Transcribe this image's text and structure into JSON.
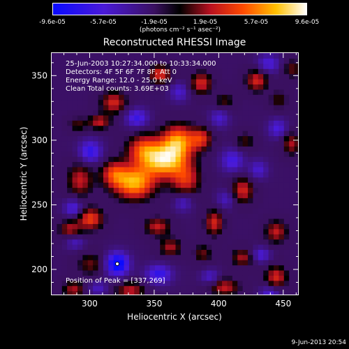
{
  "colorbar": {
    "ticks": [
      "-9.6e-05",
      "-5.7e-05",
      "-1.9e-05",
      "1.9e-05",
      "5.7e-05",
      "9.6e-05"
    ],
    "units": "(photons cm⁻² s⁻¹ asec⁻²)",
    "min": -9.6e-05,
    "max": 9.6e-05
  },
  "info": {
    "time_range": "25-Jun-2003 10:27:34.000 to 10:33:34.000",
    "detectors": "Detectors: 4F 5F 6F 7F 8F, Att 0",
    "energy": "Energy Range: 12.0 - 25.0 keV",
    "method": "Clean     Total counts: 3.69E+03",
    "peak": "Position of Peak = [337,269]"
  },
  "footer": {
    "date": "9-Jun-2013 20:54"
  },
  "chart_data": {
    "type": "heatmap",
    "title": "Reconstructed RHESSI Image",
    "xlabel": "Heliocentric X (arcsec)",
    "ylabel": "Heliocentric Y (arcsec)",
    "xlim": [
      270,
      462
    ],
    "ylim": [
      180,
      368
    ],
    "xticks": [
      300,
      350,
      400,
      450
    ],
    "yticks": [
      200,
      250,
      300,
      350
    ],
    "colormap": "rhessi-signed (blue-black-red-yellow-white)",
    "peak": [
      337,
      269
    ],
    "sources": [
      {
        "x": 357,
        "y": 285,
        "amp": 1.0,
        "sx": 12,
        "sy": 9
      },
      {
        "x": 334,
        "y": 268,
        "amp": 0.95,
        "sx": 11,
        "sy": 9
      },
      {
        "x": 368,
        "y": 300,
        "amp": 0.85,
        "sx": 9,
        "sy": 9
      },
      {
        "x": 341,
        "y": 294,
        "amp": 0.6,
        "sx": 9,
        "sy": 8
      },
      {
        "x": 318,
        "y": 275,
        "amp": 0.55,
        "sx": 7,
        "sy": 7
      },
      {
        "x": 374,
        "y": 270,
        "amp": 0.55,
        "sx": 8,
        "sy": 9
      },
      {
        "x": 386,
        "y": 302,
        "amp": 0.55,
        "sx": 6,
        "sy": 6
      },
      {
        "x": 292,
        "y": 270,
        "amp": 0.5,
        "sx": 7,
        "sy": 9
      },
      {
        "x": 300,
        "y": 240,
        "amp": 0.65,
        "sx": 7,
        "sy": 6
      },
      {
        "x": 284,
        "y": 232,
        "amp": 0.45,
        "sx": 6,
        "sy": 5
      },
      {
        "x": 352,
        "y": 234,
        "amp": 0.5,
        "sx": 7,
        "sy": 5
      },
      {
        "x": 362,
        "y": 218,
        "amp": 0.45,
        "sx": 6,
        "sy": 5
      },
      {
        "x": 396,
        "y": 237,
        "amp": 0.55,
        "sx": 5,
        "sy": 7
      },
      {
        "x": 418,
        "y": 262,
        "amp": 0.55,
        "sx": 6,
        "sy": 7
      },
      {
        "x": 420,
        "y": 300,
        "amp": 0.3,
        "sx": 5,
        "sy": 5
      },
      {
        "x": 456,
        "y": 298,
        "amp": 0.45,
        "sx": 5,
        "sy": 6
      },
      {
        "x": 444,
        "y": 230,
        "amp": 0.5,
        "sx": 6,
        "sy": 6
      },
      {
        "x": 444,
        "y": 195,
        "amp": 0.55,
        "sx": 6,
        "sy": 6
      },
      {
        "x": 418,
        "y": 210,
        "amp": 0.45,
        "sx": 6,
        "sy": 5
      },
      {
        "x": 387,
        "y": 213,
        "amp": 0.35,
        "sx": 5,
        "sy": 5
      },
      {
        "x": 404,
        "y": 187,
        "amp": 0.5,
        "sx": 8,
        "sy": 5
      },
      {
        "x": 331,
        "y": 184,
        "amp": 0.5,
        "sx": 8,
        "sy": 5
      },
      {
        "x": 300,
        "y": 205,
        "amp": 0.35,
        "sx": 7,
        "sy": 6
      },
      {
        "x": 287,
        "y": 185,
        "amp": 0.45,
        "sx": 6,
        "sy": 5
      },
      {
        "x": 307,
        "y": 315,
        "amp": 0.5,
        "sx": 6,
        "sy": 4
      },
      {
        "x": 318,
        "y": 330,
        "amp": 0.55,
        "sx": 7,
        "sy": 6
      },
      {
        "x": 290,
        "y": 313,
        "amp": 0.3,
        "sx": 5,
        "sy": 4
      },
      {
        "x": 354,
        "y": 352,
        "amp": 0.6,
        "sx": 6,
        "sy": 5
      },
      {
        "x": 386,
        "y": 345,
        "amp": 0.55,
        "sx": 6,
        "sy": 6
      },
      {
        "x": 429,
        "y": 347,
        "amp": 0.55,
        "sx": 6,
        "sy": 6
      },
      {
        "x": 404,
        "y": 331,
        "amp": 0.3,
        "sx": 5,
        "sy": 5
      },
      {
        "x": 446,
        "y": 332,
        "amp": 0.3,
        "sx": 5,
        "sy": 5
      },
      {
        "x": 457,
        "y": 356,
        "amp": 0.35,
        "sx": 5,
        "sy": 5
      },
      {
        "x": 321,
        "y": 205,
        "amp": -0.9,
        "sx": 6,
        "sy": 6
      },
      {
        "x": 300,
        "y": 292,
        "amp": -0.55,
        "sx": 6,
        "sy": 6
      },
      {
        "x": 336,
        "y": 318,
        "amp": -0.5,
        "sx": 6,
        "sy": 5
      },
      {
        "x": 287,
        "y": 248,
        "amp": -0.45,
        "sx": 5,
        "sy": 5
      },
      {
        "x": 353,
        "y": 197,
        "amp": -0.55,
        "sx": 7,
        "sy": 5
      },
      {
        "x": 410,
        "y": 285,
        "amp": -0.45,
        "sx": 6,
        "sy": 6
      },
      {
        "x": 372,
        "y": 253,
        "amp": -0.35,
        "sx": 5,
        "sy": 5
      },
      {
        "x": 393,
        "y": 195,
        "amp": -0.35,
        "sx": 5,
        "sy": 4
      },
      {
        "x": 439,
        "y": 182,
        "amp": -0.4,
        "sx": 5,
        "sy": 4
      },
      {
        "x": 432,
        "y": 212,
        "amp": -0.4,
        "sx": 5,
        "sy": 4
      },
      {
        "x": 430,
        "y": 278,
        "amp": -0.35,
        "sx": 5,
        "sy": 5
      },
      {
        "x": 445,
        "y": 310,
        "amp": -0.4,
        "sx": 5,
        "sy": 5
      },
      {
        "x": 400,
        "y": 318,
        "amp": -0.35,
        "sx": 5,
        "sy": 5
      },
      {
        "x": 438,
        "y": 360,
        "amp": -0.4,
        "sx": 6,
        "sy": 5
      },
      {
        "x": 369,
        "y": 338,
        "amp": -0.35,
        "sx": 5,
        "sy": 5
      },
      {
        "x": 288,
        "y": 222,
        "amp": -0.3,
        "sx": 5,
        "sy": 4
      },
      {
        "x": 306,
        "y": 186,
        "amp": -0.3,
        "sx": 5,
        "sy": 4
      },
      {
        "x": 405,
        "y": 255,
        "amp": -0.3,
        "sx": 5,
        "sy": 5
      }
    ],
    "baseline": -0.22
  }
}
